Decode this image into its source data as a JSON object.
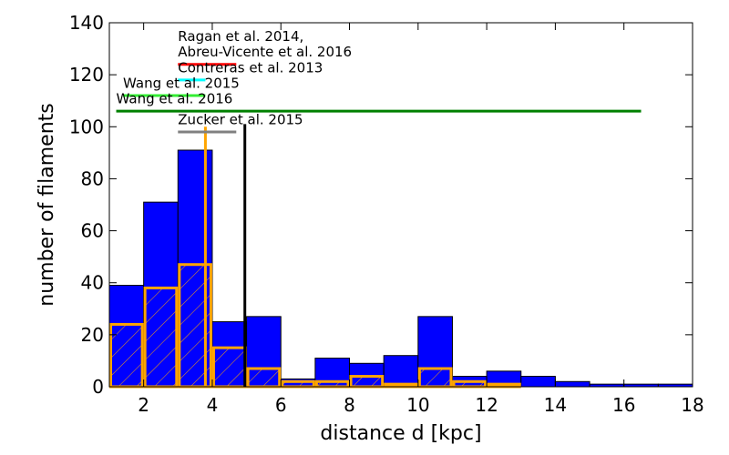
{
  "chart_data": {
    "type": "bar",
    "xlabel": "distance d [kpc]",
    "ylabel": "number of filaments",
    "xlim": [
      1,
      18
    ],
    "ylim": [
      0,
      140
    ],
    "xticks": [
      2,
      4,
      6,
      8,
      10,
      12,
      14,
      16,
      18
    ],
    "yticks": [
      0,
      20,
      40,
      60,
      80,
      100,
      120,
      140
    ],
    "grid": false,
    "bin_edges": [
      1,
      2,
      3,
      4,
      5,
      6,
      7,
      8,
      9,
      10,
      11,
      12,
      13,
      14,
      15,
      16,
      17,
      18
    ],
    "series": [
      {
        "style": "filled",
        "color": "#0000ff",
        "values": [
          39,
          71,
          91,
          25,
          27,
          3,
          11,
          9,
          12,
          27,
          4,
          6,
          4,
          2,
          1,
          1,
          1
        ]
      },
      {
        "style": "hatched-outline",
        "color": "#ffa500",
        "values": [
          24,
          38,
          47,
          15,
          7,
          2,
          2,
          4,
          1,
          7,
          2,
          1,
          0,
          0,
          0,
          0,
          0
        ]
      }
    ],
    "vertical_lines": [
      {
        "x": 3.8,
        "y_max": 100,
        "color": "#ffa500"
      },
      {
        "x": 4.95,
        "y_max": 101,
        "color": "#000000"
      }
    ],
    "survey_ranges": [
      {
        "label": "Ragan et al. 2014,",
        "label_x": 3.0,
        "label_y": 133,
        "x_start": null,
        "x_end": null,
        "y": null,
        "color": null
      },
      {
        "label": "Abreu-Vicente et al. 2016",
        "label_x": 3.0,
        "label_y": 127,
        "x_start": 3.0,
        "x_end": 4.7,
        "y": 124,
        "color": "#ff0000"
      },
      {
        "label": "Contreras et al. 2013",
        "label_x": 3.0,
        "label_y": 121,
        "x_start": 3.0,
        "x_end": 3.8,
        "y": 118,
        "color": "#00ffff"
      },
      {
        "label": "Wang et al. 2015",
        "label_x": 1.4,
        "label_y": 115,
        "x_start": 1.4,
        "x_end": 3.8,
        "y": 112,
        "color": "#33ee33"
      },
      {
        "label": "Wang et al. 2016",
        "label_x": 1.2,
        "label_y": 109,
        "x_start": 1.2,
        "x_end": 16.5,
        "y": 106,
        "color": "#008000"
      },
      {
        "label": "Zucker et al. 2015",
        "label_x": 3.0,
        "label_y": 101,
        "x_start": 3.0,
        "x_end": 4.7,
        "y": 98,
        "color": "#808080"
      }
    ]
  }
}
